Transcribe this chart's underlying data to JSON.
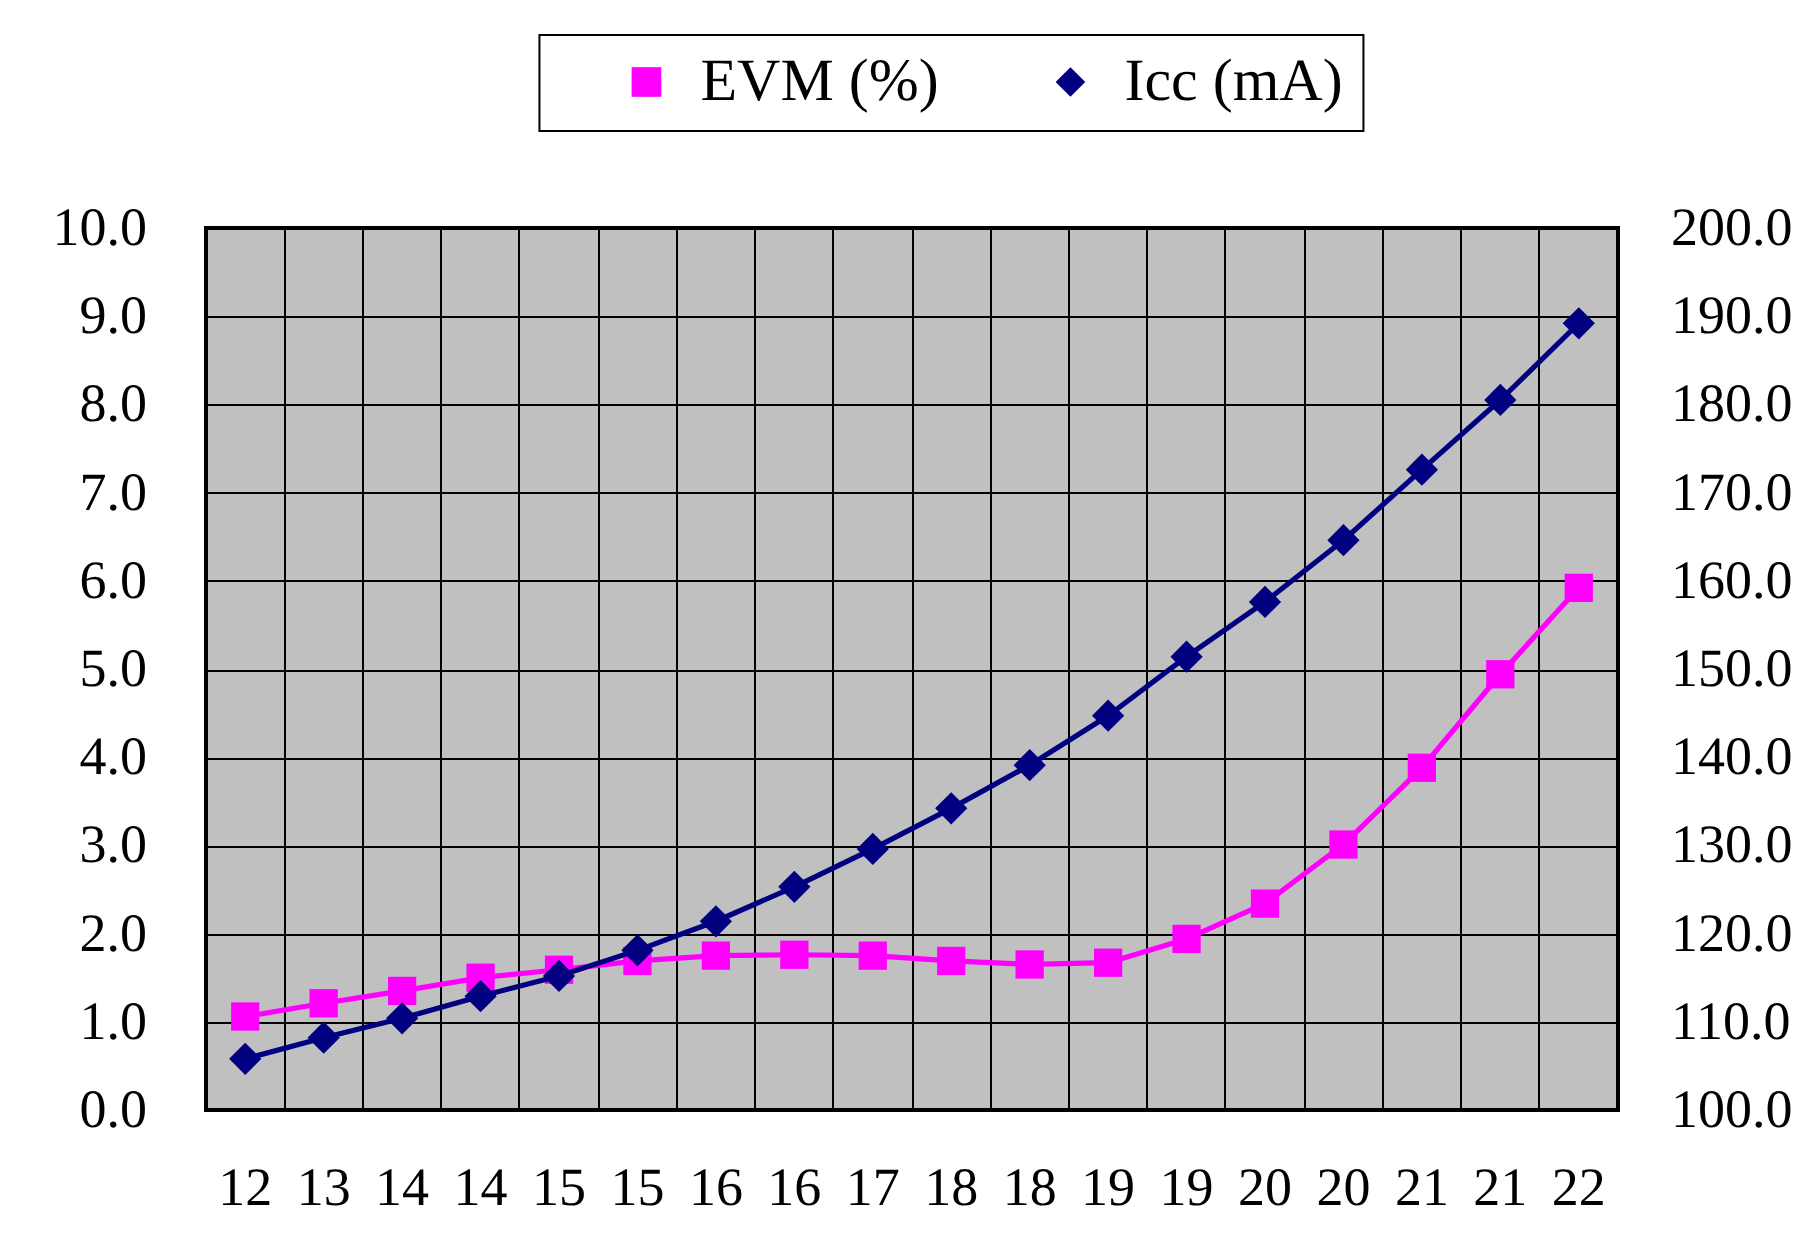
{
  "chart_data": {
    "type": "line",
    "categories": [
      "12",
      "13",
      "14",
      "14",
      "15",
      "15",
      "16",
      "16",
      "17",
      "18",
      "18",
      "19",
      "19",
      "20",
      "20",
      "21",
      "21",
      "22"
    ],
    "series": [
      {
        "name": "EVM (%)",
        "color": "#ff00ff",
        "marker": "square",
        "values": [
          1.06,
          1.21,
          1.35,
          1.5,
          1.59,
          1.69,
          1.75,
          1.76,
          1.75,
          1.69,
          1.65,
          1.67,
          1.94,
          2.34,
          3.01,
          3.88,
          4.94,
          5.92
        ]
      },
      {
        "name": "Icc (mA)",
        "color": "#000080",
        "marker": "diamond",
        "axis": "y2",
        "values": [
          105.8,
          108.2,
          110.4,
          112.9,
          115.2,
          118.1,
          121.4,
          125.3,
          129.6,
          134.2,
          139.1,
          144.7,
          151.4,
          157.6,
          164.6,
          172.6,
          180.5,
          189.2
        ]
      }
    ],
    "ylim": [
      0,
      10
    ],
    "yticks": [
      {
        "value": 0,
        "label": "0.0"
      },
      {
        "value": 1,
        "label": "1.0"
      },
      {
        "value": 2,
        "label": "2.0"
      },
      {
        "value": 3,
        "label": "3.0"
      },
      {
        "value": 4,
        "label": "4.0"
      },
      {
        "value": 5,
        "label": "5.0"
      },
      {
        "value": 6,
        "label": "6.0"
      },
      {
        "value": 7,
        "label": "7.0"
      },
      {
        "value": 8,
        "label": "8.0"
      },
      {
        "value": 9,
        "label": "9.0"
      },
      {
        "value": 10,
        "label": "10.0"
      }
    ],
    "y2lim": [
      100,
      200
    ],
    "y2ticks": [
      {
        "value": 100,
        "label": "100.0"
      },
      {
        "value": 110,
        "label": "110.0"
      },
      {
        "value": 120,
        "label": "120.0"
      },
      {
        "value": 130,
        "label": "130.0"
      },
      {
        "value": 140,
        "label": "140.0"
      },
      {
        "value": 150,
        "label": "150.0"
      },
      {
        "value": 160,
        "label": "160.0"
      },
      {
        "value": 170,
        "label": "170.0"
      },
      {
        "value": 180,
        "label": "180.0"
      },
      {
        "value": 190,
        "label": "190.0"
      },
      {
        "value": 200,
        "label": "200.0"
      }
    ],
    "grid": true,
    "legend": "top",
    "line_style": "solid"
  }
}
